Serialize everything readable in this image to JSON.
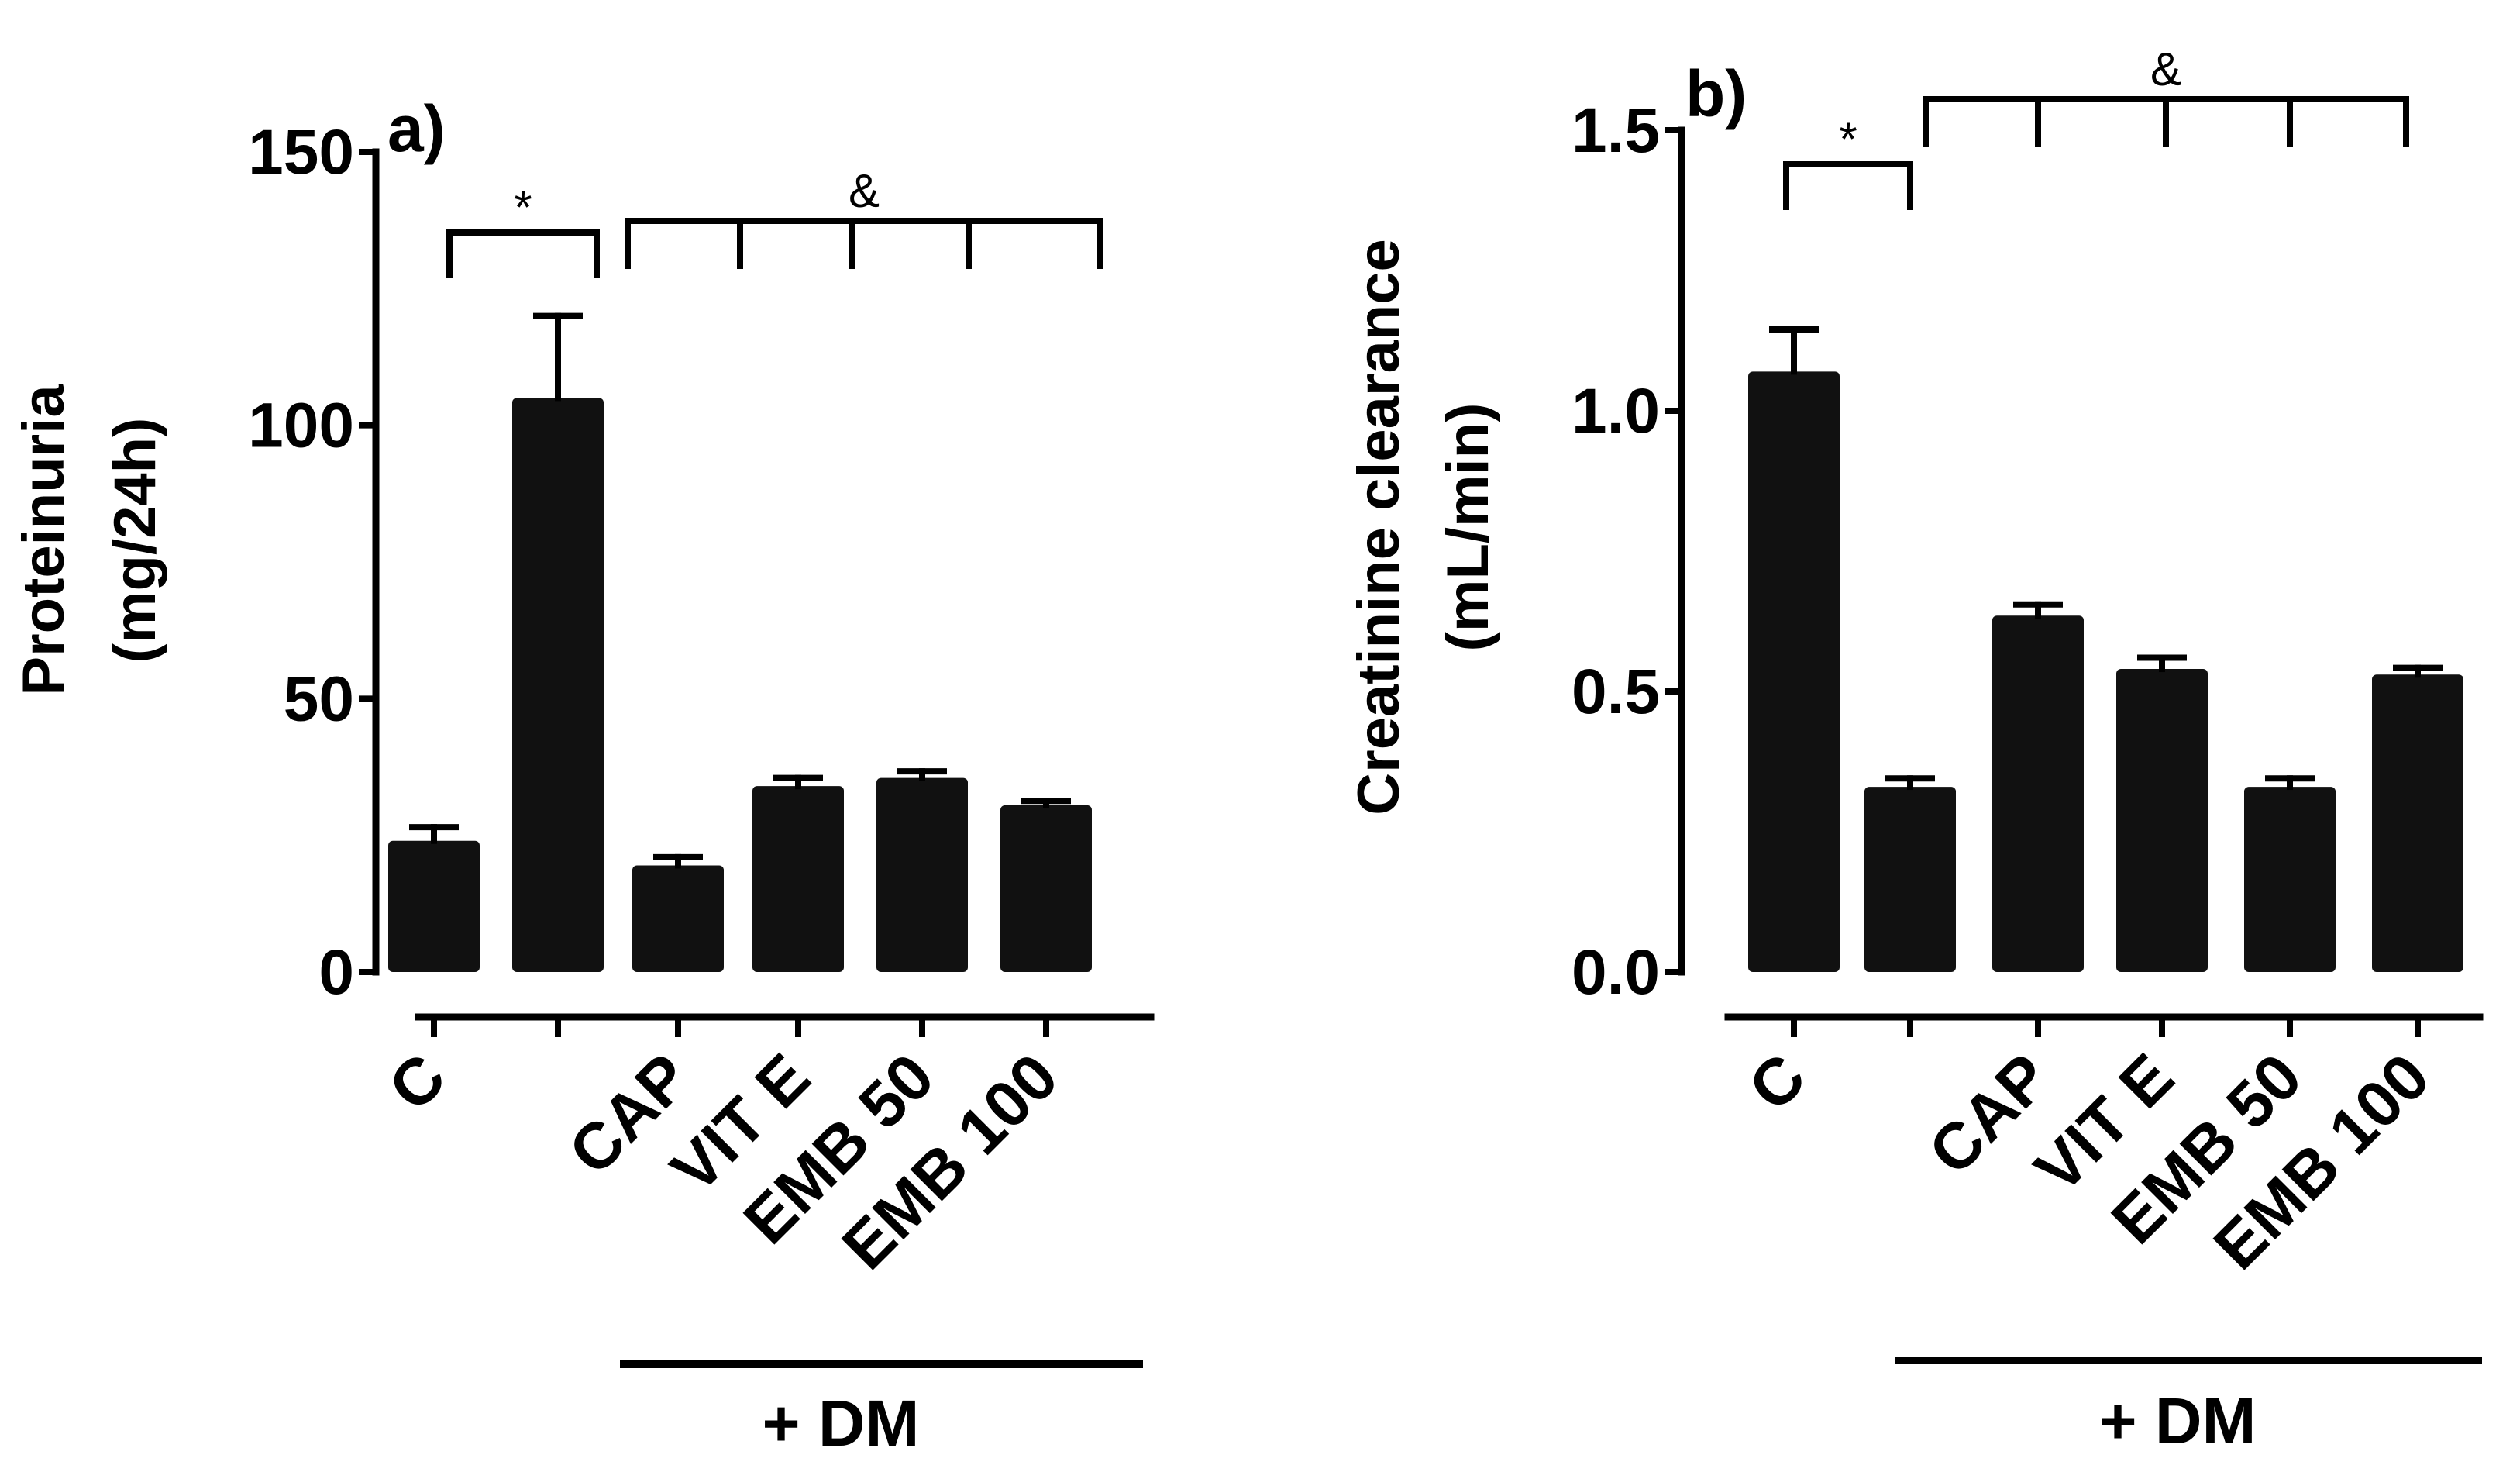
{
  "chart_data": [
    {
      "type": "bar",
      "panel_label": "a)",
      "title": "",
      "xlabel": "",
      "ylabel": [
        "Proteinuria",
        "(mg/24h)"
      ],
      "ylim": [
        0,
        150
      ],
      "yticks": [
        0,
        50,
        100,
        150
      ],
      "ytick_labels": [
        "0",
        "50",
        "100",
        "150"
      ],
      "categories": [
        "C",
        "",
        "CAP",
        "VIT E",
        "EMB 50",
        "EMB 100"
      ],
      "values": [
        24,
        105,
        19.5,
        34,
        35.5,
        30.5
      ],
      "errors": [
        2.5,
        15,
        1.5,
        1.5,
        1.2,
        0.8
      ],
      "group_label": "+ DM",
      "significance": {
        "vs_control": "*",
        "vs_dm": "&"
      },
      "bar_color": "#111111"
    },
    {
      "type": "bar",
      "panel_label": "b)",
      "title": "",
      "xlabel": "",
      "ylabel": [
        "Creatinine clearance",
        "(mL/min)"
      ],
      "ylim": [
        0,
        1.5
      ],
      "yticks": [
        0,
        0.5,
        1.0,
        1.5
      ],
      "ytick_labels": [
        "0.0",
        "0.5",
        "1.0",
        "1.5"
      ],
      "categories": [
        "C",
        "",
        "CAP",
        "VIT E",
        "EMB 50",
        "EMB 100"
      ],
      "values": [
        1.07,
        0.33,
        0.635,
        0.54,
        0.33,
        0.53
      ],
      "errors": [
        0.075,
        0.015,
        0.02,
        0.02,
        0.015,
        0.012
      ],
      "group_label": "+ DM",
      "significance": {
        "vs_control": "*",
        "vs_dm": "&"
      },
      "bar_color": "#111111"
    }
  ]
}
